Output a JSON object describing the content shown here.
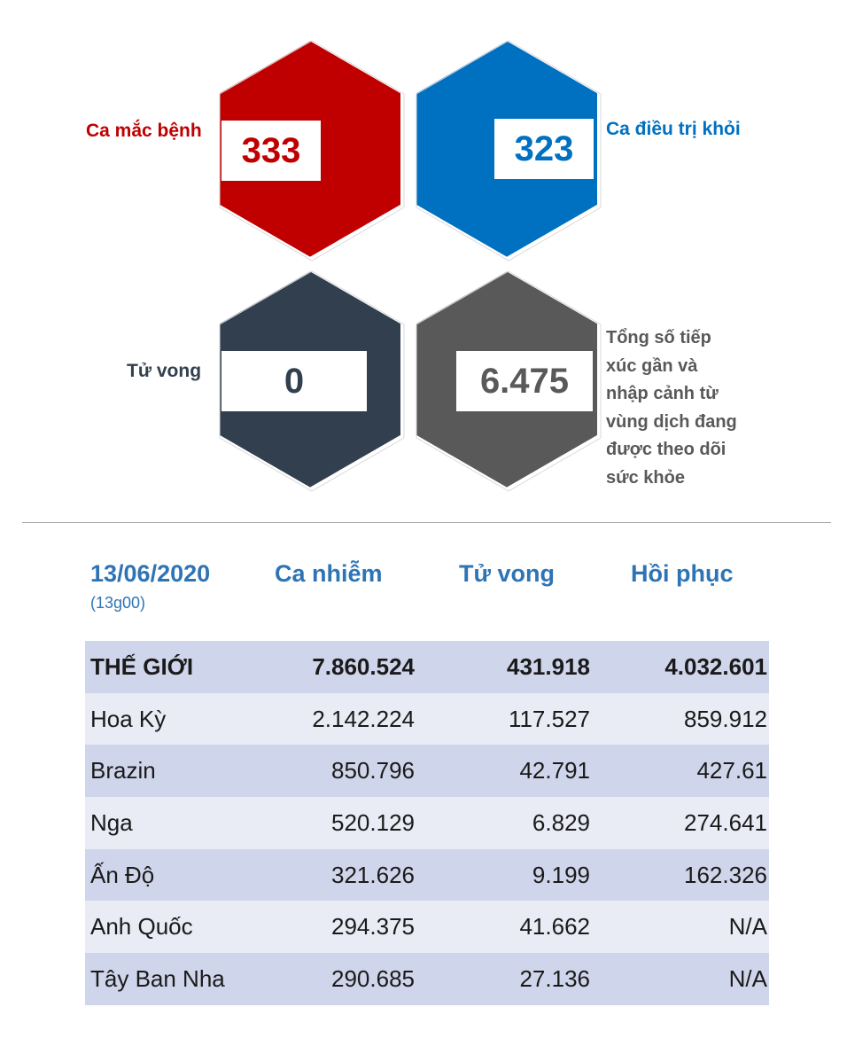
{
  "stats": {
    "cases": {
      "label": "Ca mắc bệnh",
      "value": "333",
      "color": "#c00000"
    },
    "recovered": {
      "label": "Ca điều trị khỏi",
      "value": "323",
      "color": "#0070c0"
    },
    "deaths": {
      "label": "Tử vong",
      "value": "0",
      "color": "#323f4f"
    },
    "monitored": {
      "label_lines": [
        "Tổng số tiếp",
        "xúc gần và",
        "nhập cảnh từ",
        "vùng dịch đang",
        "được theo dõi",
        "sức khỏe"
      ],
      "value": "6.475",
      "color": "#595959"
    }
  },
  "table": {
    "date": "13/06/2020",
    "time": "(13g00)",
    "headers": [
      "Ca nhiễm",
      "Tử vong",
      "Hồi phục"
    ],
    "rows": [
      {
        "name": "THẾ GIỚI",
        "cases": "7.860.524",
        "deaths": "431.918",
        "recovered": "4.032.601"
      },
      {
        "name": "Hoa Kỳ",
        "cases": "2.142.224",
        "deaths": "117.527",
        "recovered": "859.912"
      },
      {
        "name": "Brazin",
        "cases": "850.796",
        "deaths": "42.791",
        "recovered": "427.61"
      },
      {
        "name": "Nga",
        "cases": "520.129",
        "deaths": "6.829",
        "recovered": "274.641"
      },
      {
        "name": "Ấn Độ",
        "cases": "321.626",
        "deaths": "9.199",
        "recovered": "162.326"
      },
      {
        "name": "Anh Quốc",
        "cases": "294.375",
        "deaths": "41.662",
        "recovered": "N/A"
      },
      {
        "name": "Tây Ban Nha",
        "cases": "290.685",
        "deaths": "27.136",
        "recovered": "N/A"
      }
    ]
  }
}
